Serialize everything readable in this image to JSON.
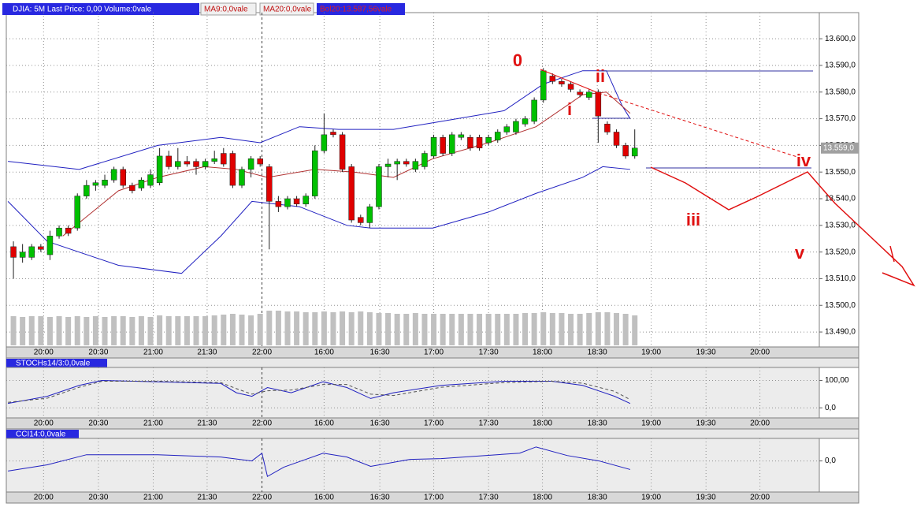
{
  "chart_data": [
    {
      "type": "candlestick",
      "header": [
        "DJIA: 5M Last Price: 0,00 Volume:0vale",
        "MA9:0,0vale",
        "MA20:0,0vale",
        "Bol20:13.587,56vale"
      ],
      "up_color": "#00c000",
      "down_color": "#e00000",
      "volume_color": "#c0c0c0",
      "open": [
        13522,
        13518,
        13518,
        13522,
        13519,
        13526,
        13529,
        13529,
        13541,
        13545,
        13545,
        13547,
        13551,
        13545,
        13544,
        13545,
        13546,
        13556,
        13552,
        13554,
        13554,
        13552,
        13554,
        13557,
        13557,
        13545,
        13551,
        13555,
        13552,
        13539,
        13537,
        13540,
        13538,
        13541,
        13558,
        13565,
        13564,
        13552,
        13533,
        13531,
        13537,
        13552,
        13553,
        13554,
        13551,
        13552,
        13556,
        13563,
        13557,
        13563,
        13563,
        13563,
        13561,
        13562,
        13565,
        13565,
        13568,
        13569,
        13577,
        13586,
        13584,
        13583,
        13580,
        13578,
        13580,
        13568,
        13565,
        13560,
        13556
      ],
      "high": [
        13524,
        13523,
        13523,
        13523,
        13528,
        13530,
        13530,
        13542,
        13547,
        13547,
        13549,
        13552,
        13552,
        13546,
        13548,
        13551,
        13559,
        13558,
        13559,
        13556,
        13555,
        13555,
        13558,
        13559,
        13558,
        13552,
        13556,
        13556,
        13553,
        13541,
        13541,
        13541,
        13542,
        13560,
        13572,
        13566,
        13565,
        13553,
        13534,
        13538,
        13553,
        13555,
        13555,
        13555,
        13555,
        13558,
        13564,
        13564,
        13565,
        13565,
        13564,
        13564,
        13564,
        13566,
        13568,
        13570,
        13571,
        13578,
        13589,
        13587,
        13585,
        13584,
        13581,
        13581,
        13581,
        13569,
        13566,
        13561,
        13566
      ],
      "low": [
        13510,
        13516,
        13517,
        13520,
        13517,
        13525,
        13526,
        13528,
        13540,
        13543,
        13544,
        13546,
        13544,
        13542,
        13543,
        13544,
        13545,
        13551,
        13551,
        13552,
        13549,
        13551,
        13553,
        13552,
        13544,
        13544,
        13548,
        13552,
        13521,
        13535,
        13536,
        13537,
        13537,
        13540,
        13557,
        13563,
        13550,
        13531,
        13530,
        13529,
        13536,
        13548,
        13547,
        13552,
        13550,
        13551,
        13555,
        13556,
        13556,
        13562,
        13558,
        13558,
        13560,
        13561,
        13564,
        13564,
        13567,
        13568,
        13576,
        13583,
        13582,
        13580,
        13578,
        13577,
        13561,
        13564,
        13559,
        13555,
        13555
      ],
      "close": [
        13518,
        13520,
        13522,
        13521,
        13526,
        13529,
        13527,
        13541,
        13545,
        13546,
        13547,
        13551,
        13545,
        13543,
        13547,
        13549,
        13556,
        13552,
        13554,
        13553,
        13552,
        13554,
        13555,
        13553,
        13545,
        13551,
        13555,
        13553,
        13539,
        13537,
        13540,
        13538,
        13541,
        13558,
        13564,
        13564,
        13551,
        13532,
        13531,
        13537,
        13552,
        13553,
        13554,
        13553,
        13554,
        13557,
        13563,
        13557,
        13564,
        13564,
        13559,
        13559,
        13563,
        13565,
        13567,
        13569,
        13570,
        13577,
        13588,
        13584,
        13583,
        13581,
        13579,
        13580,
        13571,
        13565,
        13560,
        13556,
        13559
      ],
      "volume": [
        37,
        36,
        37,
        37,
        36,
        37,
        36,
        37,
        36,
        37,
        36,
        37,
        37,
        36,
        37,
        36,
        38,
        37,
        37,
        37,
        37,
        37,
        38,
        39,
        40,
        39,
        38,
        40,
        44,
        44,
        43,
        43,
        42,
        42,
        43,
        42,
        43,
        42,
        43,
        42,
        41,
        41,
        40,
        40,
        41,
        40,
        40,
        40,
        40,
        40,
        40,
        40,
        40,
        40,
        40,
        40,
        41,
        41,
        42,
        41,
        41,
        40,
        40,
        41,
        42,
        42,
        41,
        40,
        38
      ],
      "lines": [
        {
          "color": "#2020c0",
          "x": [
            -0.6,
            7.2,
            15.8,
            22.7,
            27,
            31.3,
            35.6,
            41.6,
            46.8,
            53.7,
            58,
            62.3,
            64.9,
            66.6,
            67.5
          ],
          "values": [
            13554,
            13551,
            13560,
            13563,
            13561,
            13567,
            13566,
            13566,
            13569,
            13573,
            13583,
            13588,
            13588,
            13575,
            13570
          ]
        },
        {
          "color": "#2020c0",
          "x": [
            -0.6,
            3.7,
            11.5,
            18.4,
            22.7,
            26.1,
            31.3,
            36.5,
            39.1,
            45.9,
            52,
            57.2,
            62.3,
            64.5,
            67.5
          ],
          "values": [
            13539,
            13524,
            13515,
            13512,
            13526,
            13539,
            13537,
            13530,
            13529,
            13529,
            13535,
            13542,
            13548,
            13552,
            13551
          ]
        },
        {
          "color": "#b03030",
          "x": [
            5.4,
            11.5,
            15.8,
            20.9,
            24.4,
            27.8,
            33,
            37.3,
            41.6,
            45.9,
            52,
            57.2,
            62.3,
            64.9,
            67.5
          ],
          "values": [
            13526,
            13543,
            13548,
            13552,
            13551,
            13548,
            13551,
            13550,
            13548,
            13555,
            13561,
            13567,
            13579,
            13580,
            13572
          ]
        }
      ],
      "last_price": {
        "value": 13559,
        "label": "13.559,0"
      },
      "annotations": [
        "0",
        "i",
        "ii",
        "iii",
        "iv",
        "v"
      ],
      "annotation_color": "#e01010",
      "xlim": [
        -0.78,
        88.2
      ],
      "ylim": [
        13484.4,
        13609.8
      ],
      "xticks": [
        {
          "value": 3.3,
          "label": "20:00"
        },
        {
          "value": 9.3,
          "label": "20:30"
        },
        {
          "value": 15.3,
          "label": "21:00"
        },
        {
          "value": 21.2,
          "label": "21:30"
        },
        {
          "value": 27.2,
          "label": "22:00"
        },
        {
          "value": 34,
          "label": "16:00"
        },
        {
          "value": 40.1,
          "label": "16:30"
        },
        {
          "value": 46,
          "label": "17:00"
        },
        {
          "value": 52,
          "label": "17:30"
        },
        {
          "value": 57.9,
          "label": "18:00"
        },
        {
          "value": 63.9,
          "label": "18:30"
        },
        {
          "value": 69.8,
          "label": "19:00"
        },
        {
          "value": 75.8,
          "label": "19:30"
        },
        {
          "value": 81.7,
          "label": "20:00"
        }
      ],
      "yticks": [
        {
          "value": 13600,
          "label": "13.600,0"
        },
        {
          "value": 13590,
          "label": "13.590,0"
        },
        {
          "value": 13580,
          "label": "13.580,0"
        },
        {
          "value": 13570,
          "label": "13.570,0"
        },
        {
          "value": 13560,
          "label": "13.560,0"
        },
        {
          "value": 13550,
          "label": "13.550,0"
        },
        {
          "value": 13540,
          "label": "13.540,0"
        },
        {
          "value": 13530,
          "label": "13.530,0"
        },
        {
          "value": 13520,
          "label": "13.520,0"
        },
        {
          "value": 13510,
          "label": "13.510,0"
        },
        {
          "value": 13500,
          "label": "13.500,0"
        },
        {
          "value": 13490,
          "label": "13.490,0"
        }
      ],
      "grid": true
    },
    {
      "type": "line",
      "title": "STOCHs14/3:0,0vale",
      "series": [
        {
          "color": "#2020c0",
          "dash": false,
          "x": [
            -0.6,
            3.7,
            7.2,
            9.7,
            15.8,
            22.7,
            24.4,
            26.1,
            27.8,
            30.4,
            33.9,
            36.5,
            39.1,
            41.6,
            46.8,
            53.7,
            58.9,
            62.3,
            65.8,
            67.5
          ],
          "values": [
            16,
            42,
            82,
            100,
            95,
            89,
            55,
            42,
            74,
            55,
            95,
            74,
            34,
            55,
            82,
            97,
            97,
            82,
            42,
            16
          ]
        },
        {
          "color": "#505050",
          "dash": true,
          "x": [
            -0.6,
            3.7,
            7.2,
            9.7,
            15.8,
            22.7,
            24.4,
            26.1,
            27.8,
            30.4,
            33.9,
            36.5,
            39.1,
            41.6,
            46.8,
            53.7,
            58.9,
            62.3,
            65.8,
            67.5
          ],
          "values": [
            20,
            35,
            75,
            97,
            97,
            92,
            70,
            50,
            62,
            65,
            85,
            85,
            50,
            45,
            75,
            92,
            97,
            90,
            60,
            30
          ]
        }
      ],
      "xlim": [
        -0.78,
        88.2
      ],
      "ylim": [
        -36.8,
        147.4
      ],
      "yticks": [
        {
          "value": 100,
          "label": "100,00"
        },
        {
          "value": 0,
          "label": "0,0"
        }
      ],
      "grid": true
    },
    {
      "type": "line",
      "title": "CCI14:0,0vale",
      "series": [
        {
          "color": "#2020c0",
          "dash": false,
          "x": [
            -0.6,
            3.7,
            8,
            15.8,
            22.7,
            26.1,
            27.2,
            27.8,
            29.6,
            33.9,
            36.5,
            39.1,
            43.4,
            46.8,
            55.4,
            57.2,
            60.6,
            64.1,
            67.5
          ],
          "values": [
            -26,
            -10,
            16,
            16,
            10,
            0,
            20,
            -40,
            -16,
            20,
            10,
            -14,
            4,
            6,
            20,
            36,
            14,
            0,
            -22
          ]
        }
      ],
      "xlim": [
        -0.78,
        88.2
      ],
      "ylim": [
        -80,
        58
      ],
      "yticks": [
        {
          "value": 0,
          "label": "0,0"
        }
      ],
      "grid": true
    }
  ]
}
